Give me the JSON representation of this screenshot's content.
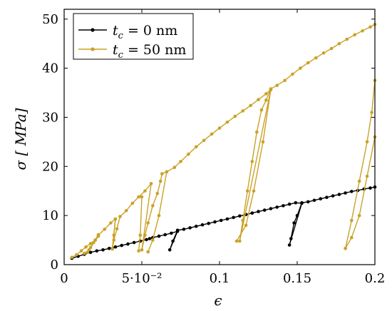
{
  "chart_data": {
    "type": "line",
    "xlabel": "ϵ",
    "ylabel": "σ [ MPa]",
    "xlim": [
      0,
      0.2
    ],
    "ylim": [
      0,
      52
    ],
    "grid": false,
    "legend_placement": "top-left",
    "x_ticks": [
      {
        "value": 0,
        "label": "0"
      },
      {
        "value": 0.05,
        "label": "5·10⁻²"
      },
      {
        "value": 0.1,
        "label": "0.1"
      },
      {
        "value": 0.15,
        "label": "0.15"
      },
      {
        "value": 0.2,
        "label": "0.2"
      }
    ],
    "y_ticks": [
      {
        "value": 0,
        "label": "0"
      },
      {
        "value": 10,
        "label": "10"
      },
      {
        "value": 20,
        "label": "20"
      },
      {
        "value": 30,
        "label": "30"
      },
      {
        "value": 40,
        "label": "40"
      },
      {
        "value": 50,
        "label": "50"
      }
    ],
    "series": [
      {
        "name": "t_c = 0 nm",
        "legend_label": "tc = 0 nm",
        "color": "#000000",
        "points": [
          [
            0.005,
            1.3
          ],
          [
            0.009,
            1.7
          ],
          [
            0.013,
            2.1
          ],
          [
            0.017,
            2.5
          ],
          [
            0.021,
            2.8
          ],
          [
            0.025,
            3.0
          ],
          [
            0.029,
            3.3
          ],
          [
            0.033,
            3.6
          ],
          [
            0.037,
            3.9
          ],
          [
            0.041,
            4.2
          ],
          [
            0.045,
            4.5
          ],
          [
            0.049,
            4.8
          ],
          [
            0.053,
            5.1
          ],
          [
            0.055,
            5.3
          ],
          [
            0.057,
            5.5
          ],
          [
            0.061,
            5.8
          ],
          [
            0.065,
            6.1
          ],
          [
            0.069,
            6.4
          ],
          [
            0.073,
            6.8
          ],
          [
            0.068,
            3.0
          ],
          [
            0.07,
            4.8
          ],
          [
            0.073,
            7.0
          ],
          [
            0.077,
            7.2
          ],
          [
            0.081,
            7.5
          ],
          [
            0.085,
            7.8
          ],
          [
            0.089,
            8.1
          ],
          [
            0.093,
            8.4
          ],
          [
            0.097,
            8.7
          ],
          [
            0.101,
            9.0
          ],
          [
            0.105,
            9.3
          ],
          [
            0.109,
            9.6
          ],
          [
            0.113,
            9.9
          ],
          [
            0.117,
            10.2
          ],
          [
            0.121,
            10.5
          ],
          [
            0.125,
            10.8
          ],
          [
            0.129,
            11.1
          ],
          [
            0.133,
            11.4
          ],
          [
            0.137,
            11.7
          ],
          [
            0.141,
            12.0
          ],
          [
            0.145,
            12.3
          ],
          [
            0.149,
            12.6
          ],
          [
            0.153,
            12.5
          ],
          [
            0.145,
            4.0
          ],
          [
            0.146,
            5.3
          ],
          [
            0.148,
            8.5
          ],
          [
            0.15,
            10.0
          ],
          [
            0.153,
            12.6
          ],
          [
            0.157,
            12.8
          ],
          [
            0.161,
            13.1
          ],
          [
            0.165,
            13.4
          ],
          [
            0.169,
            13.7
          ],
          [
            0.173,
            14.0
          ],
          [
            0.177,
            14.3
          ],
          [
            0.181,
            14.6
          ],
          [
            0.185,
            14.9
          ],
          [
            0.189,
            15.1
          ],
          [
            0.193,
            15.4
          ],
          [
            0.197,
            15.6
          ],
          [
            0.2,
            15.8
          ]
        ]
      },
      {
        "name": "t_c = 50 nm",
        "legend_label": "tc = 50 nm",
        "color": "#c9a227",
        "points": [
          [
            0.005,
            1.5
          ],
          [
            0.008,
            2.0
          ],
          [
            0.011,
            2.8
          ],
          [
            0.014,
            3.6
          ],
          [
            0.017,
            4.3
          ],
          [
            0.02,
            5.0
          ],
          [
            0.022,
            5.8
          ],
          [
            0.015,
            2.5
          ],
          [
            0.017,
            3.5
          ],
          [
            0.02,
            5.0
          ],
          [
            0.022,
            6.0
          ],
          [
            0.026,
            7.2
          ],
          [
            0.03,
            8.5
          ],
          [
            0.033,
            9.3
          ],
          [
            0.031,
            3.2
          ],
          [
            0.032,
            5.0
          ],
          [
            0.034,
            7.3
          ],
          [
            0.036,
            9.8
          ],
          [
            0.04,
            11.0
          ],
          [
            0.044,
            12.5
          ],
          [
            0.048,
            13.8
          ],
          [
            0.052,
            15.0
          ],
          [
            0.056,
            16.5
          ],
          [
            0.05,
            3.0
          ],
          [
            0.052,
            6.0
          ],
          [
            0.054,
            8.5
          ],
          [
            0.057,
            12.0
          ],
          [
            0.06,
            14.5
          ],
          [
            0.062,
            17.0
          ],
          [
            0.063,
            18.5
          ],
          [
            0.066,
            18.9
          ],
          [
            0.071,
            19.8
          ],
          [
            0.075,
            21.0
          ],
          [
            0.08,
            22.5
          ],
          [
            0.085,
            24.0
          ],
          [
            0.09,
            25.3
          ],
          [
            0.095,
            26.6
          ],
          [
            0.1,
            27.8
          ],
          [
            0.105,
            29.0
          ],
          [
            0.11,
            30.2
          ],
          [
            0.115,
            31.3
          ],
          [
            0.12,
            32.4
          ],
          [
            0.125,
            33.6
          ],
          [
            0.13,
            34.8
          ],
          [
            0.133,
            35.6
          ],
          [
            0.113,
            4.8
          ],
          [
            0.115,
            9.0
          ],
          [
            0.118,
            15.0
          ],
          [
            0.121,
            21.0
          ],
          [
            0.124,
            27.0
          ],
          [
            0.127,
            31.5
          ],
          [
            0.13,
            33.5
          ],
          [
            0.133,
            35.8
          ],
          [
            0.137,
            36.5
          ],
          [
            0.142,
            37.5
          ],
          [
            0.147,
            38.8
          ],
          [
            0.152,
            40.0
          ],
          [
            0.157,
            41.1
          ],
          [
            0.162,
            42.1
          ],
          [
            0.167,
            43.1
          ],
          [
            0.172,
            44.0
          ],
          [
            0.177,
            45.0
          ],
          [
            0.182,
            45.9
          ],
          [
            0.187,
            46.8
          ],
          [
            0.192,
            47.6
          ],
          [
            0.197,
            48.4
          ],
          [
            0.2,
            48.9
          ]
        ],
        "unloading_loops": [
          [
            [
              0.022,
              6.1
            ],
            [
              0.019,
              4.5
            ],
            [
              0.016,
              3.0
            ],
            [
              0.013,
              2.3
            ]
          ],
          [
            [
              0.033,
              9.3
            ],
            [
              0.032,
              6.0
            ],
            [
              0.031,
              3.2
            ]
          ],
          [
            [
              0.05,
              13.8
            ],
            [
              0.049,
              6.0
            ],
            [
              0.048,
              2.8
            ]
          ],
          [
            [
              0.066,
              18.9
            ],
            [
              0.061,
              10.0
            ],
            [
              0.057,
              5.0
            ],
            [
              0.054,
              2.6
            ]
          ],
          [
            [
              0.133,
              35.6
            ],
            [
              0.128,
              25.0
            ],
            [
              0.122,
              15.0
            ],
            [
              0.117,
              8.0
            ],
            [
              0.111,
              4.8
            ]
          ],
          [
            [
              0.2,
              26.0
            ],
            [
              0.195,
              18.0
            ],
            [
              0.19,
              10.0
            ],
            [
              0.185,
              5.5
            ],
            [
              0.181,
              3.3
            ]
          ],
          [
            [
              0.181,
              3.3
            ],
            [
              0.185,
              9.0
            ],
            [
              0.19,
              17.0
            ],
            [
              0.195,
              25.0
            ],
            [
              0.198,
              31.0
            ],
            [
              0.2,
              37.5
            ]
          ]
        ]
      }
    ]
  }
}
